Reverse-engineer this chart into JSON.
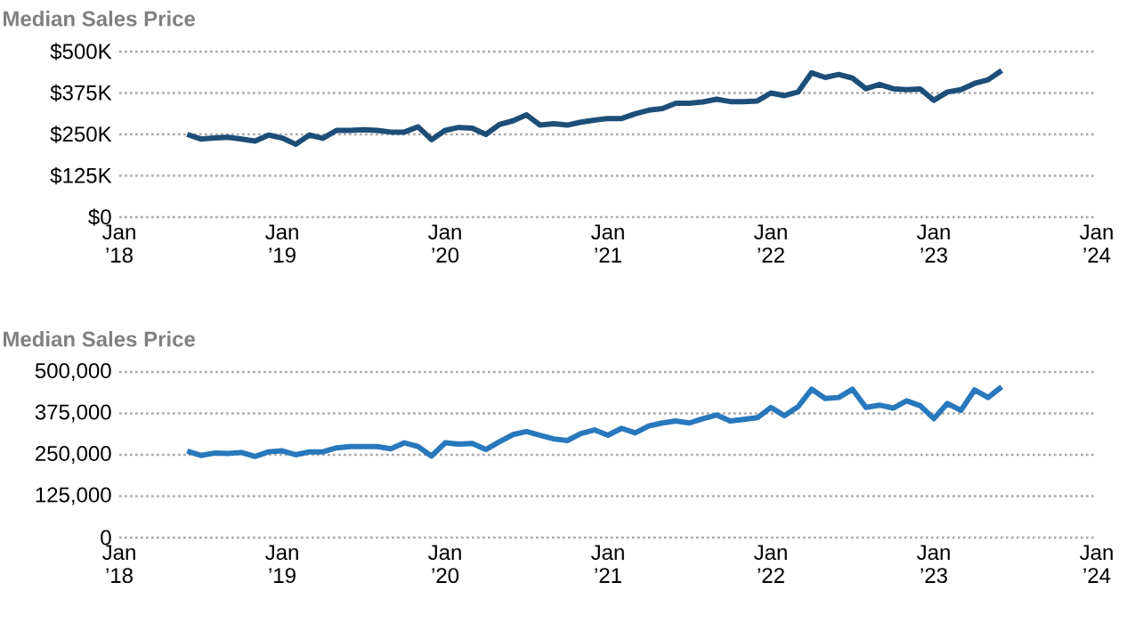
{
  "chart_data": [
    {
      "type": "line",
      "title": "Median Sales Price",
      "color": "#1d4e77",
      "grid": "y",
      "x": [
        "2018-06",
        "2018-07",
        "2018-08",
        "2018-09",
        "2018-10",
        "2018-11",
        "2018-12",
        "2019-01",
        "2019-02",
        "2019-03",
        "2019-04",
        "2019-05",
        "2019-06",
        "2019-07",
        "2019-08",
        "2019-09",
        "2019-10",
        "2019-11",
        "2019-12",
        "2020-01",
        "2020-02",
        "2020-03",
        "2020-04",
        "2020-05",
        "2020-06",
        "2020-07",
        "2020-08",
        "2020-09",
        "2020-10",
        "2020-11",
        "2020-12",
        "2021-01",
        "2021-02",
        "2021-03",
        "2021-04",
        "2021-05",
        "2021-06",
        "2021-07",
        "2021-08",
        "2021-09",
        "2021-10",
        "2021-11",
        "2021-12",
        "2022-01",
        "2022-02",
        "2022-03",
        "2022-04",
        "2022-05",
        "2022-06",
        "2022-07",
        "2022-08",
        "2022-09",
        "2022-10",
        "2022-11",
        "2022-12",
        "2023-01",
        "2023-02",
        "2023-03",
        "2023-04",
        "2023-05",
        "2023-06"
      ],
      "values": [
        250000,
        236000,
        239000,
        241000,
        236000,
        230000,
        248000,
        239000,
        220000,
        248000,
        238000,
        262000,
        262000,
        264000,
        262000,
        257000,
        257000,
        273000,
        234000,
        262000,
        271000,
        269000,
        250000,
        280000,
        291000,
        309000,
        278000,
        282000,
        278000,
        287000,
        293000,
        298000,
        298000,
        312000,
        323000,
        328000,
        344000,
        344000,
        348000,
        356000,
        349000,
        349000,
        351000,
        375000,
        367000,
        378000,
        436000,
        422000,
        431000,
        420000,
        388000,
        401000,
        388000,
        385000,
        387000,
        353000,
        378000,
        385000,
        404000,
        415000,
        443000
      ],
      "xlim": [
        "2018-01",
        "2024-01"
      ],
      "xticks": [
        {
          "value": "2018-01",
          "label": "Jan ’18"
        },
        {
          "value": "2019-01",
          "label": "Jan ’19"
        },
        {
          "value": "2020-01",
          "label": "Jan ’20"
        },
        {
          "value": "2021-01",
          "label": "Jan ’21"
        },
        {
          "value": "2022-01",
          "label": "Jan ’22"
        },
        {
          "value": "2023-01",
          "label": "Jan ’23"
        },
        {
          "value": "2024-01",
          "label": "Jan ’24"
        }
      ],
      "ylim": [
        0,
        500000
      ],
      "yticks": [
        {
          "value": 0,
          "label": "$0"
        },
        {
          "value": 125000,
          "label": "$125K"
        },
        {
          "value": 250000,
          "label": "$250K"
        },
        {
          "value": 375000,
          "label": "$375K"
        },
        {
          "value": 500000,
          "label": "$500K"
        }
      ]
    },
    {
      "type": "line",
      "title": "Median Sales Price",
      "color": "#2878bd",
      "grid": "y",
      "x": [
        "2018-06",
        "2018-07",
        "2018-08",
        "2018-09",
        "2018-10",
        "2018-11",
        "2018-12",
        "2019-01",
        "2019-02",
        "2019-03",
        "2019-04",
        "2019-05",
        "2019-06",
        "2019-07",
        "2019-08",
        "2019-09",
        "2019-10",
        "2019-11",
        "2019-12",
        "2020-01",
        "2020-02",
        "2020-03",
        "2020-04",
        "2020-05",
        "2020-06",
        "2020-07",
        "2020-08",
        "2020-09",
        "2020-10",
        "2020-11",
        "2020-12",
        "2021-01",
        "2021-02",
        "2021-03",
        "2021-04",
        "2021-05",
        "2021-06",
        "2021-07",
        "2021-08",
        "2021-09",
        "2021-10",
        "2021-11",
        "2021-12",
        "2022-01",
        "2022-02",
        "2022-03",
        "2022-04",
        "2022-05",
        "2022-06",
        "2022-07",
        "2022-08",
        "2022-09",
        "2022-10",
        "2022-11",
        "2022-12",
        "2023-01",
        "2023-02",
        "2023-03",
        "2023-04",
        "2023-05",
        "2023-06"
      ],
      "values": [
        261000,
        248000,
        255000,
        254000,
        257000,
        245000,
        259000,
        262000,
        250000,
        259000,
        259000,
        271000,
        275000,
        275000,
        275000,
        268000,
        286000,
        275000,
        246000,
        286000,
        282000,
        284000,
        266000,
        289000,
        311000,
        320000,
        309000,
        298000,
        293000,
        314000,
        325000,
        309000,
        330000,
        316000,
        337000,
        346000,
        352000,
        346000,
        359000,
        370000,
        352000,
        357000,
        362000,
        393000,
        368000,
        395000,
        448000,
        420000,
        423000,
        448000,
        393000,
        400000,
        391000,
        413000,
        398000,
        359000,
        405000,
        384000,
        446000,
        423000,
        455000
      ],
      "xlim": [
        "2018-01",
        "2024-01"
      ],
      "xticks": [
        {
          "value": "2018-01",
          "label": "Jan ’18"
        },
        {
          "value": "2019-01",
          "label": "Jan ’19"
        },
        {
          "value": "2020-01",
          "label": "Jan ’20"
        },
        {
          "value": "2021-01",
          "label": "Jan ’21"
        },
        {
          "value": "2022-01",
          "label": "Jan ’22"
        },
        {
          "value": "2023-01",
          "label": "Jan ’23"
        },
        {
          "value": "2024-01",
          "label": "Jan ’24"
        }
      ],
      "ylim": [
        0,
        500000
      ],
      "yticks": [
        0,
        {
          "value": 125000,
          "label": "125,000"
        },
        {
          "value": 250000,
          "label": "250,000"
        },
        {
          "value": 375000,
          "label": "375,000"
        },
        {
          "value": 500000,
          "label": "500,000"
        }
      ]
    }
  ]
}
